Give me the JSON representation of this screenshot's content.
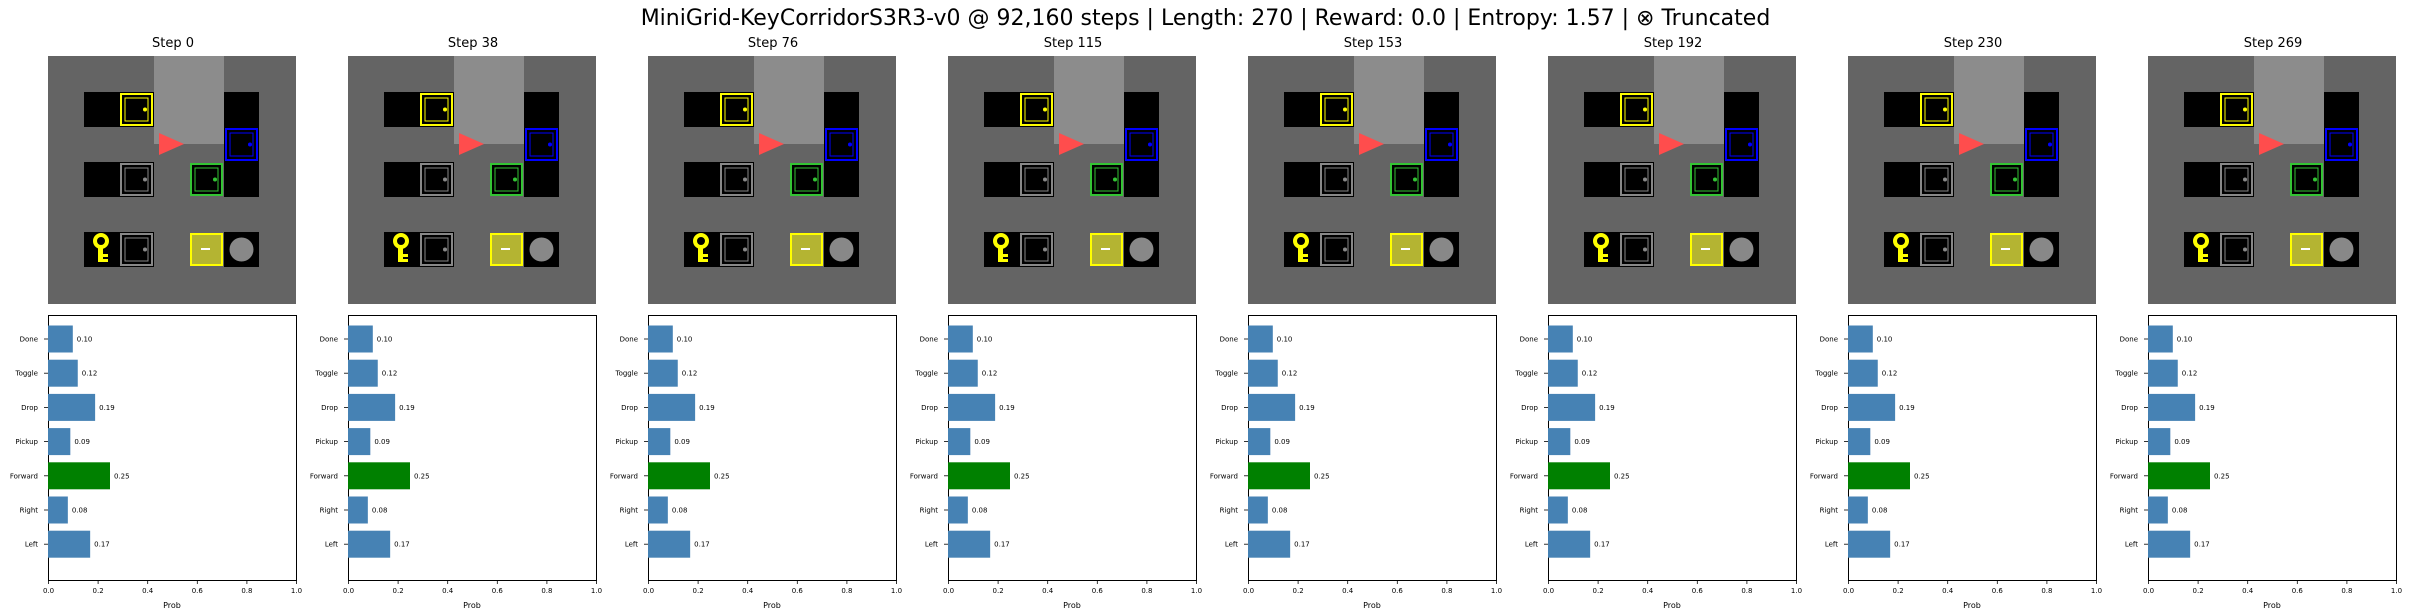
{
  "title": "MiniGrid-KeyCorridorS3R3-v0 @ 92,160 steps | Length: 270 | Reward: 0.0 | Entropy: 1.57 | ⊗ Truncated",
  "colors": {
    "bar_default": "#4682b4",
    "bar_selected": "#008000",
    "floor": "#646464",
    "corridor": "#8c8c8c",
    "wall_block": "#000000",
    "agent": "#ff4d4d",
    "yellow": "#ffff00",
    "blue": "#0000ff",
    "green": "#34c434",
    "gray_obj": "#888888"
  },
  "icons": [
    "agent-triangle-icon",
    "key-icon",
    "ball-icon",
    "door-icon",
    "box-icon"
  ],
  "panels": [
    {
      "title": "Step 0"
    },
    {
      "title": "Step 38"
    },
    {
      "title": "Step 76"
    },
    {
      "title": "Step 115"
    },
    {
      "title": "Step 153"
    },
    {
      "title": "Step 192"
    },
    {
      "title": "Step 230"
    },
    {
      "title": "Step 269"
    }
  ],
  "chart_data": {
    "type": "bar",
    "orientation": "horizontal",
    "categories": [
      "Done",
      "Toggle",
      "Drop",
      "Pickup",
      "Forward",
      "Right",
      "Left"
    ],
    "values": [
      0.1,
      0.12,
      0.19,
      0.09,
      0.25,
      0.08,
      0.17
    ],
    "value_labels": [
      "0.10",
      "0.12",
      "0.19",
      "0.09",
      "0.25",
      "0.08",
      "0.17"
    ],
    "selected": "Forward",
    "xlabel": "Prob",
    "xlim": [
      0,
      1
    ],
    "xticks": [
      "0.0",
      "0.2",
      "0.4",
      "0.6",
      "0.8",
      "1.0"
    ],
    "grid": false,
    "legend": "none"
  }
}
